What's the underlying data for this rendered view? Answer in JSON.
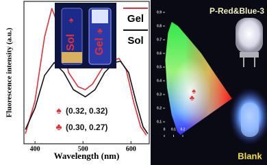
{
  "chart_data": [
    {
      "type": "line",
      "x_label": "Wavelength (nm)",
      "y_label": "Fluorescence intensity (a.u.)",
      "xlim": [
        377,
        638
      ],
      "xticks": [
        400,
        500,
        600
      ],
      "ylim": [
        0,
        1
      ],
      "series": [
        {
          "name": "Gel",
          "color": "#e0303a",
          "x": [
            380,
            400,
            420,
            435,
            450,
            470,
            490,
            505,
            520,
            540,
            560,
            575,
            590,
            605,
            620,
            632
          ],
          "values": [
            0.07,
            0.3,
            0.75,
            0.95,
            0.82,
            0.5,
            0.4,
            0.38,
            0.42,
            0.53,
            0.58,
            0.6,
            0.52,
            0.3,
            0.12,
            0.06
          ]
        },
        {
          "name": "Sol",
          "color": "#111111",
          "x": [
            380,
            400,
            420,
            440,
            460,
            480,
            505,
            525,
            545,
            565,
            578,
            595,
            610,
            625,
            635
          ],
          "values": [
            0.1,
            0.25,
            0.48,
            0.57,
            0.5,
            0.38,
            0.33,
            0.38,
            0.5,
            0.57,
            0.58,
            0.5,
            0.3,
            0.12,
            0.07
          ]
        }
      ],
      "annotations": [
        {
          "symbol": "♠",
          "text": "(0.32, 0.32)"
        },
        {
          "symbol": "♣",
          "text": "(0.30, 0.27)"
        }
      ],
      "inset_labels": [
        "♠",
        "Sol",
        "♣",
        "Gel"
      ]
    },
    {
      "type": "scatter",
      "xlim": [
        0,
        0.8
      ],
      "xticks": [
        0,
        0.1,
        0.2
      ],
      "ylim": [
        0,
        0.9
      ],
      "yticks": [
        0.1,
        0.2,
        0.3,
        0.4,
        0.5,
        0.6,
        0.7,
        0.8,
        0.9
      ],
      "points": {
        "x": [
          0.32,
          0.3
        ],
        "y": [
          0.32,
          0.27
        ],
        "symbols": [
          "♠",
          "♣"
        ],
        "color": "#e0303a"
      },
      "photo_labels": [
        "P-Red&Blue-3",
        "Blank"
      ]
    }
  ]
}
